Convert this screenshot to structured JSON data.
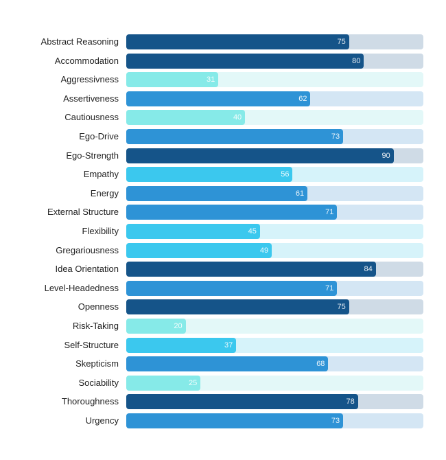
{
  "chart_data": {
    "type": "bar",
    "orientation": "horizontal",
    "title": "",
    "xlabel": "",
    "ylabel": "",
    "xlim": [
      0,
      100
    ],
    "grid": false,
    "categories": [
      "Abstract Reasoning",
      "Accommodation",
      "Aggressivness",
      "Assertiveness",
      "Cautiousness",
      "Ego-Drive",
      "Ego-Strength",
      "Empathy",
      "Energy",
      "External Structure",
      "Flexibility",
      "Gregariousness",
      "Idea Orientation",
      "Level-Headedness",
      "Openness",
      "Risk-Taking",
      "Self-Structure",
      "Skepticism",
      "Sociability",
      "Thoroughness",
      "Urgency"
    ],
    "values": [
      75,
      80,
      31,
      62,
      40,
      73,
      90,
      56,
      61,
      71,
      45,
      49,
      84,
      71,
      75,
      20,
      37,
      68,
      25,
      78,
      73
    ],
    "value_labels": [
      "75",
      "80",
      "31",
      "62",
      "40",
      "73",
      "90",
      "56",
      "61",
      "71",
      "45",
      "49",
      "84",
      "71",
      "75",
      "20",
      "37",
      "68",
      "25",
      "78",
      "73"
    ],
    "bar_colors": [
      "dark",
      "dark",
      "teal",
      "medium",
      "teal",
      "medium",
      "dark",
      "cyan",
      "medium",
      "medium",
      "cyan",
      "cyan",
      "dark",
      "medium",
      "dark",
      "teal",
      "cyan",
      "medium",
      "teal",
      "dark",
      "medium"
    ]
  },
  "palette": {
    "dark": {
      "bar": "#155489",
      "track": "#cfdbe6"
    },
    "medium": {
      "bar": "#2e93d6",
      "track": "#d4e6f4"
    },
    "cyan": {
      "bar": "#3bc8ee",
      "track": "#d6f3fa"
    },
    "teal": {
      "bar": "#86eae8",
      "track": "#e3f8f8"
    }
  }
}
